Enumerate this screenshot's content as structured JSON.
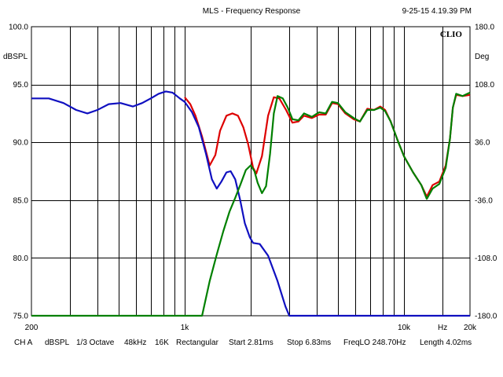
{
  "header": {
    "title": "MLS - Frequency Response",
    "timestamp": "9-25-15 4.19.39 PM"
  },
  "brand": "CLIO",
  "footer": {
    "channel": "CH A",
    "unit": "dBSPL",
    "smoothing": "1/3 Octave",
    "sample_rate": "48kHz",
    "size": "16K",
    "window": "Rectangular",
    "start": "Start 2.81ms",
    "stop": "Stop 6.83ms",
    "freq_lo": "FreqLO 248.70Hz",
    "length": "Length 4.02ms"
  },
  "chart_data": {
    "type": "line",
    "title": "MLS - Frequency Response",
    "x_scale": "log",
    "xlim": [
      200,
      20000
    ],
    "ylim": [
      75,
      100
    ],
    "y2lim": [
      -180,
      180
    ],
    "grid": true,
    "y_axis_unit": "dBSPL",
    "y2_axis_unit": "Deg",
    "x_axis_unit": "Hz",
    "x_tick_labels": [
      {
        "value": 200,
        "label": "200"
      },
      {
        "value": 1000,
        "label": "1k"
      },
      {
        "value": 10000,
        "label": "10k"
      },
      {
        "value": 20000,
        "label": "20k"
      }
    ],
    "x_unit_tick": {
      "value": 15000,
      "label": "Hz"
    },
    "x_minor_gridlines": [
      300,
      400,
      500,
      600,
      700,
      800,
      900,
      2000,
      3000,
      4000,
      5000,
      6000,
      7000,
      8000,
      9000
    ],
    "y_ticks": [
      {
        "value": 100,
        "label": "100.0"
      },
      {
        "value": 95,
        "label": "95.0"
      },
      {
        "value": 90,
        "label": "90.0"
      },
      {
        "value": 85,
        "label": "85.0"
      },
      {
        "value": 80,
        "label": "80.0"
      },
      {
        "value": 75,
        "label": "75.0"
      }
    ],
    "y2_ticks": [
      {
        "value": 180,
        "label": "180.0"
      },
      {
        "value": 108,
        "label": "108.0"
      },
      {
        "value": 36,
        "label": "36.0"
      },
      {
        "value": -36,
        "label": "-36.0"
      },
      {
        "value": -108,
        "label": "-108.0"
      },
      {
        "value": -180,
        "label": "-180.0"
      }
    ],
    "series": [
      {
        "color": "#dd0000",
        "points": [
          [
            1000,
            93.9
          ],
          [
            1060,
            93.3
          ],
          [
            1120,
            92.3
          ],
          [
            1200,
            90.5
          ],
          [
            1300,
            88.0
          ],
          [
            1380,
            88.9
          ],
          [
            1450,
            91.0
          ],
          [
            1550,
            92.3
          ],
          [
            1650,
            92.5
          ],
          [
            1750,
            92.3
          ],
          [
            1850,
            91.3
          ],
          [
            1950,
            89.8
          ],
          [
            2050,
            87.8
          ],
          [
            2120,
            87.3
          ],
          [
            2250,
            88.8
          ],
          [
            2400,
            92.3
          ],
          [
            2550,
            93.9
          ],
          [
            2700,
            93.8
          ],
          [
            2900,
            92.8
          ],
          [
            3100,
            91.7
          ],
          [
            3300,
            91.8
          ],
          [
            3500,
            92.3
          ],
          [
            3800,
            92.1
          ],
          [
            4100,
            92.4
          ],
          [
            4400,
            92.4
          ],
          [
            4700,
            93.4
          ],
          [
            5000,
            93.3
          ],
          [
            5400,
            92.5
          ],
          [
            5900,
            92.0
          ],
          [
            6300,
            91.8
          ],
          [
            6800,
            92.9
          ],
          [
            7300,
            92.8
          ],
          [
            7800,
            93.1
          ],
          [
            8200,
            92.8
          ],
          [
            8700,
            91.8
          ],
          [
            9300,
            90.3
          ],
          [
            10000,
            88.8
          ],
          [
            11000,
            87.4
          ],
          [
            12000,
            86.3
          ],
          [
            12700,
            85.3
          ],
          [
            13500,
            86.3
          ],
          [
            14500,
            86.6
          ],
          [
            15500,
            88.0
          ],
          [
            16200,
            90.3
          ],
          [
            16700,
            93.0
          ],
          [
            17300,
            94.1
          ],
          [
            18500,
            94.0
          ],
          [
            20000,
            94.1
          ]
        ]
      },
      {
        "color": "#1010c0",
        "points": [
          [
            200,
            93.8
          ],
          [
            240,
            93.8
          ],
          [
            280,
            93.4
          ],
          [
            320,
            92.8
          ],
          [
            360,
            92.5
          ],
          [
            400,
            92.8
          ],
          [
            450,
            93.3
          ],
          [
            510,
            93.4
          ],
          [
            580,
            93.1
          ],
          [
            640,
            93.4
          ],
          [
            700,
            93.8
          ],
          [
            760,
            94.2
          ],
          [
            820,
            94.4
          ],
          [
            880,
            94.3
          ],
          [
            950,
            93.8
          ],
          [
            1000,
            93.5
          ],
          [
            1080,
            92.6
          ],
          [
            1160,
            91.3
          ],
          [
            1250,
            89.0
          ],
          [
            1330,
            86.8
          ],
          [
            1400,
            86.0
          ],
          [
            1470,
            86.6
          ],
          [
            1550,
            87.4
          ],
          [
            1620,
            87.5
          ],
          [
            1700,
            86.8
          ],
          [
            1790,
            85.0
          ],
          [
            1880,
            83.0
          ],
          [
            1980,
            81.8
          ],
          [
            2050,
            81.3
          ],
          [
            2200,
            81.2
          ],
          [
            2400,
            80.2
          ],
          [
            2650,
            78.0
          ],
          [
            2880,
            75.8
          ],
          [
            3000,
            75.0
          ],
          [
            20000,
            75.0
          ]
        ]
      },
      {
        "color": "#008000",
        "points": [
          [
            200,
            75.0
          ],
          [
            1200,
            75.0
          ],
          [
            1300,
            78.0
          ],
          [
            1400,
            80.3
          ],
          [
            1500,
            82.3
          ],
          [
            1600,
            84.0
          ],
          [
            1700,
            85.2
          ],
          [
            1800,
            86.4
          ],
          [
            1900,
            87.6
          ],
          [
            2000,
            88.0
          ],
          [
            2080,
            87.5
          ],
          [
            2150,
            86.5
          ],
          [
            2250,
            85.6
          ],
          [
            2350,
            86.2
          ],
          [
            2450,
            89.0
          ],
          [
            2550,
            92.5
          ],
          [
            2650,
            94.0
          ],
          [
            2800,
            93.8
          ],
          [
            2950,
            93.0
          ],
          [
            3100,
            92.0
          ],
          [
            3300,
            91.9
          ],
          [
            3500,
            92.5
          ],
          [
            3800,
            92.2
          ],
          [
            4100,
            92.6
          ],
          [
            4400,
            92.5
          ],
          [
            4700,
            93.5
          ],
          [
            5000,
            93.4
          ],
          [
            5400,
            92.6
          ],
          [
            5900,
            92.1
          ],
          [
            6300,
            91.8
          ],
          [
            6800,
            92.8
          ],
          [
            7300,
            92.8
          ],
          [
            7800,
            93.0
          ],
          [
            8200,
            92.7
          ],
          [
            8700,
            91.8
          ],
          [
            9300,
            90.3
          ],
          [
            10000,
            88.8
          ],
          [
            11000,
            87.4
          ],
          [
            12000,
            86.3
          ],
          [
            12700,
            85.1
          ],
          [
            13500,
            86.0
          ],
          [
            14500,
            86.4
          ],
          [
            15500,
            87.8
          ],
          [
            16200,
            90.3
          ],
          [
            16700,
            93.0
          ],
          [
            17300,
            94.2
          ],
          [
            18500,
            94.0
          ],
          [
            20000,
            94.3
          ]
        ]
      }
    ]
  }
}
